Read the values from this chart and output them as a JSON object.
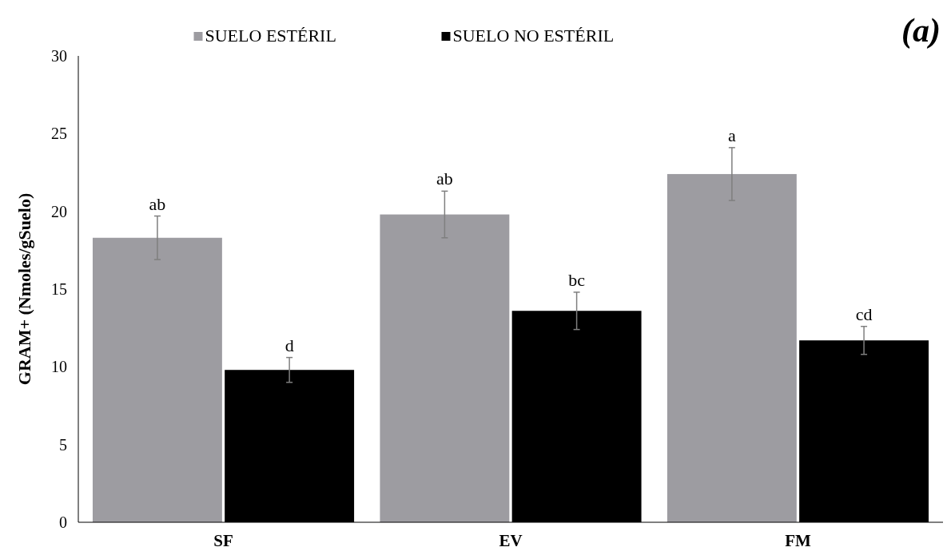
{
  "chart_data": {
    "type": "bar",
    "title": "(a)",
    "ylabel": "GRAM+ (Nmoles/gSuelo)",
    "categories": [
      "SF",
      "EV",
      "FM"
    ],
    "series": [
      {
        "name": "SUELO ESTÉRIL",
        "color": "#9d9ca1",
        "values": [
          18.3,
          19.8,
          22.4
        ],
        "errors": [
          1.4,
          1.5,
          1.7
        ]
      },
      {
        "name": "SUELO NO ESTÉRIL",
        "color": "#000000",
        "values": [
          9.8,
          13.6,
          11.7
        ],
        "errors": [
          0.8,
          1.2,
          0.9
        ]
      }
    ],
    "ylim": [
      0,
      30
    ],
    "yticks": [
      0,
      5,
      10,
      15,
      20,
      25,
      30
    ],
    "legend": "top",
    "grid": false,
    "annotations": [
      "ab",
      "d",
      "ab",
      "bc",
      "a",
      "cd"
    ]
  }
}
